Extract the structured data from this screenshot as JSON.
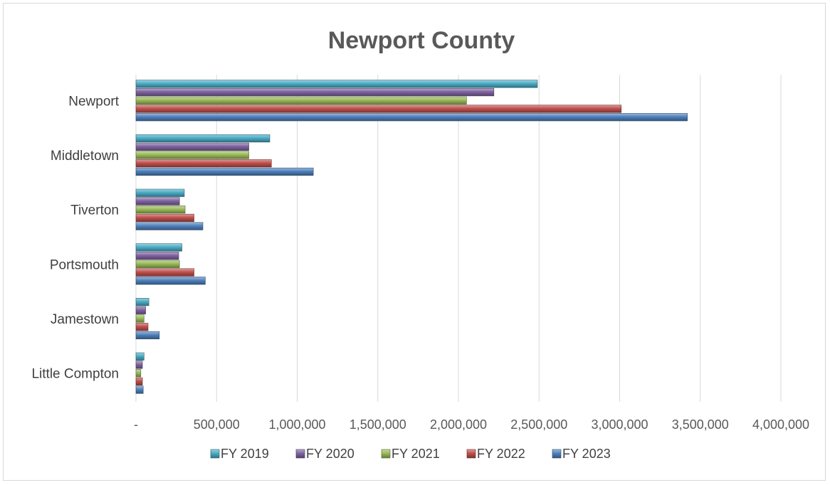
{
  "chart_data": {
    "type": "bar",
    "orientation": "horizontal",
    "title": "Newport County",
    "xlabel": "",
    "ylabel": "",
    "categories": [
      "Newport",
      "Middletown",
      "Tiverton",
      "Portsmouth",
      "Jamestown",
      "Little Compton"
    ],
    "series": [
      {
        "name": "FY 2019",
        "color": "#4bacc6",
        "values": [
          2490000,
          830000,
          300000,
          285000,
          80000,
          50000
        ]
      },
      {
        "name": "FY 2020",
        "color": "#8064a2",
        "values": [
          2220000,
          700000,
          270000,
          265000,
          60000,
          40000
        ]
      },
      {
        "name": "FY 2021",
        "color": "#9bbb59",
        "values": [
          2050000,
          700000,
          305000,
          270000,
          50000,
          30000
        ]
      },
      {
        "name": "FY 2022",
        "color": "#c0504d",
        "values": [
          3010000,
          840000,
          360000,
          360000,
          75000,
          40000
        ]
      },
      {
        "name": "FY 2023",
        "color": "#4f81bd",
        "values": [
          3420000,
          1100000,
          415000,
          430000,
          145000,
          45000
        ]
      }
    ],
    "xlim": [
      0,
      4000000
    ],
    "ticks": [
      {
        "value": 0,
        "label": "-"
      },
      {
        "value": 500000,
        "label": "500,000"
      },
      {
        "value": 1000000,
        "label": "1,000,000"
      },
      {
        "value": 1500000,
        "label": "1,500,000"
      },
      {
        "value": 2000000,
        "label": "2,000,000"
      },
      {
        "value": 2500000,
        "label": "2,500,000"
      },
      {
        "value": 3000000,
        "label": "3,000,000"
      },
      {
        "value": 3500000,
        "label": "3,500,000"
      },
      {
        "value": 4000000,
        "label": "4,000,000"
      }
    ],
    "grid": true,
    "legend_position": "bottom"
  }
}
